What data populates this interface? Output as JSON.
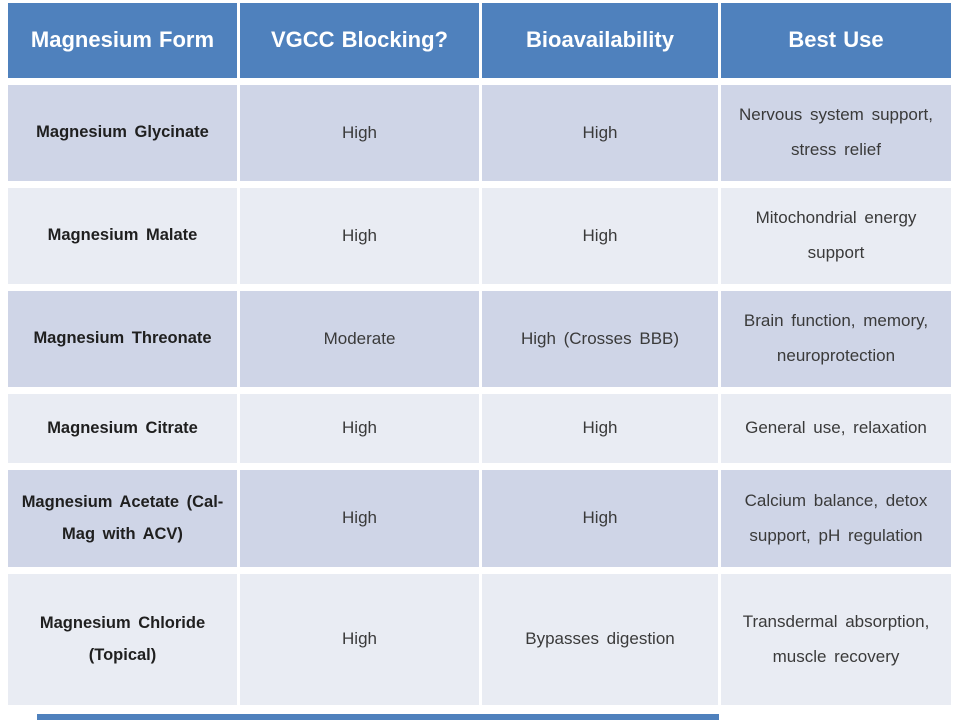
{
  "colors": {
    "header-bg": "#4F81BD",
    "band-dark": "#CFD5E7",
    "band-light": "#E9ECF3",
    "header-text": "#FFFFFF",
    "body-text": "#3A3A3A",
    "form-text": "#1F1F1F"
  },
  "table": {
    "headers": [
      "Magnesium Form",
      "VGCC Blocking?",
      "Bioavailability",
      "Best Use"
    ],
    "rows": [
      [
        "Magnesium Glycinate",
        "High",
        "High",
        "Nervous system support, stress relief"
      ],
      [
        "Magnesium Malate",
        "High",
        "High",
        "Mitochondrial energy support"
      ],
      [
        "Magnesium Threonate",
        "Moderate",
        "High (Crosses BBB)",
        "Brain function, memory, neuroprotection"
      ],
      [
        "Magnesium Citrate",
        "High",
        "High",
        "General use, relaxation"
      ],
      [
        "Magnesium Acetate (Cal-Mag with ACV)",
        "High",
        "High",
        "Calcium balance, detox support, pH regulation"
      ],
      [
        "Magnesium Chloride (Topical)",
        "High",
        "Bypasses digestion",
        "Transdermal absorption, muscle recovery"
      ]
    ]
  }
}
